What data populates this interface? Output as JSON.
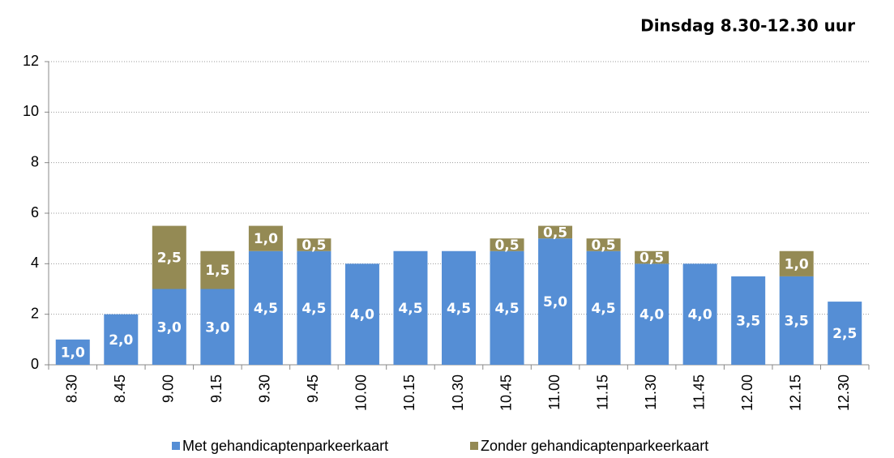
{
  "chart_data": {
    "type": "stacked_bar",
    "title": "Dinsdag 8.30-12.30 uur",
    "categories": [
      "8.30",
      "8.45",
      "9.00",
      "9.15",
      "9.30",
      "9.45",
      "10.00",
      "10.15",
      "10.30",
      "10.45",
      "11.00",
      "11.15",
      "11.30",
      "11.45",
      "12.00",
      "12.15",
      "12.30"
    ],
    "series": [
      {
        "name": "Met gehandicaptenparkeerkaart",
        "color": "#558ed5",
        "values": [
          1,
          2,
          3,
          3,
          4.5,
          4.5,
          4,
          4.5,
          4.5,
          4.5,
          5,
          4.5,
          4,
          4,
          3.5,
          3.5,
          2.5
        ],
        "value_labels": [
          "1,0",
          "2,0",
          "3,0",
          "3,0",
          "4,5",
          "4,5",
          "4,0",
          "4,5",
          "4,5",
          "4,5",
          "5,0",
          "4,5",
          "4,0",
          "4,0",
          "3,5",
          "3,5",
          "2,5"
        ]
      },
      {
        "name": "Zonder gehandicaptenparkeerkaart",
        "color": "#948a54",
        "values": [
          null,
          null,
          2.5,
          1.5,
          1,
          0.5,
          null,
          null,
          null,
          0.5,
          0.5,
          0.5,
          0.5,
          null,
          null,
          1,
          null
        ],
        "value_labels": [
          null,
          null,
          "2,5",
          "1,5",
          "1,0",
          "0,5",
          null,
          null,
          null,
          "0,5",
          "0,5",
          "0,5",
          "0,5",
          null,
          null,
          "1,0",
          null
        ]
      }
    ],
    "ylim": [
      0,
      12
    ],
    "yticks": [
      0,
      2,
      4,
      6,
      8,
      10,
      12
    ],
    "grid": true,
    "legend": "bottom"
  }
}
